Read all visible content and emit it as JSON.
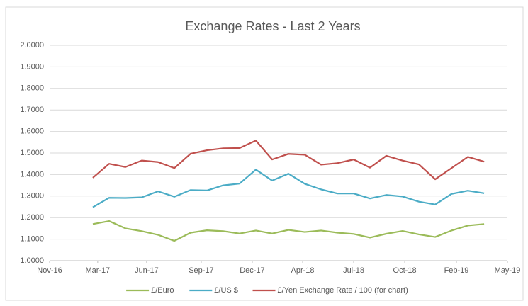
{
  "chart_data": {
    "type": "line",
    "title": "Exchange Rates - Last 2 Years",
    "x": [
      0,
      1,
      2,
      3,
      4,
      5,
      6,
      7,
      8,
      9,
      10,
      11,
      12,
      13,
      14,
      15,
      16,
      17,
      18,
      19,
      20,
      21,
      22,
      23,
      24
    ],
    "series": [
      {
        "name": "£/Euro",
        "color": "#9bbb59",
        "values": [
          1.17,
          1.184,
          1.15,
          1.137,
          1.12,
          1.092,
          1.13,
          1.141,
          1.137,
          1.126,
          1.14,
          1.126,
          1.143,
          1.133,
          1.14,
          1.13,
          1.124,
          1.107,
          1.125,
          1.138,
          1.122,
          1.11,
          1.14,
          1.163,
          1.17
        ]
      },
      {
        "name": "£/US $",
        "color": "#4bacc6",
        "values": [
          1.248,
          1.292,
          1.291,
          1.294,
          1.322,
          1.297,
          1.328,
          1.326,
          1.35,
          1.358,
          1.423,
          1.372,
          1.404,
          1.357,
          1.331,
          1.312,
          1.312,
          1.289,
          1.305,
          1.298,
          1.274,
          1.261,
          1.31,
          1.325,
          1.313
        ]
      },
      {
        "name": "£/Yen Exchange Rate / 100 (for chart)",
        "color": "#c0504d",
        "values": [
          1.385,
          1.45,
          1.435,
          1.465,
          1.458,
          1.43,
          1.497,
          1.513,
          1.522,
          1.523,
          1.558,
          1.47,
          1.496,
          1.492,
          1.446,
          1.453,
          1.47,
          1.432,
          1.487,
          1.465,
          1.447,
          1.378,
          1.43,
          1.482,
          1.46
        ]
      }
    ],
    "xlim": [
      -2.65,
      25.43
    ],
    "xticks": [
      {
        "value": -2.65,
        "label": "Nov-16"
      },
      {
        "value": 0.3,
        "label": "Mar-17"
      },
      {
        "value": 3.3,
        "label": "Jun-17"
      },
      {
        "value": 6.65,
        "label": "Sep-17"
      },
      {
        "value": 9.78,
        "label": "Dec-17"
      },
      {
        "value": 12.87,
        "label": "Apr-18"
      },
      {
        "value": 16,
        "label": "Jul-18"
      },
      {
        "value": 19.13,
        "label": "Oct-18"
      },
      {
        "value": 22.3,
        "label": "Feb-19"
      },
      {
        "value": 25.43,
        "label": "May-19"
      }
    ],
    "ylim": [
      1,
      2
    ],
    "yticks": [
      {
        "value": 1,
        "label": "1.0000"
      },
      {
        "value": 1.1,
        "label": "1.1000"
      },
      {
        "value": 1.2,
        "label": "1.2000"
      },
      {
        "value": 1.3,
        "label": "1.3000"
      },
      {
        "value": 1.4,
        "label": "1.4000"
      },
      {
        "value": 1.5,
        "label": "1.5000"
      },
      {
        "value": 1.6,
        "label": "1.6000"
      },
      {
        "value": 1.7,
        "label": "1.7000"
      },
      {
        "value": 1.8,
        "label": "1.8000"
      },
      {
        "value": 1.9,
        "label": "1.9000"
      },
      {
        "value": 2,
        "label": "2.0000"
      }
    ],
    "grid": true,
    "legend": "bottom"
  }
}
